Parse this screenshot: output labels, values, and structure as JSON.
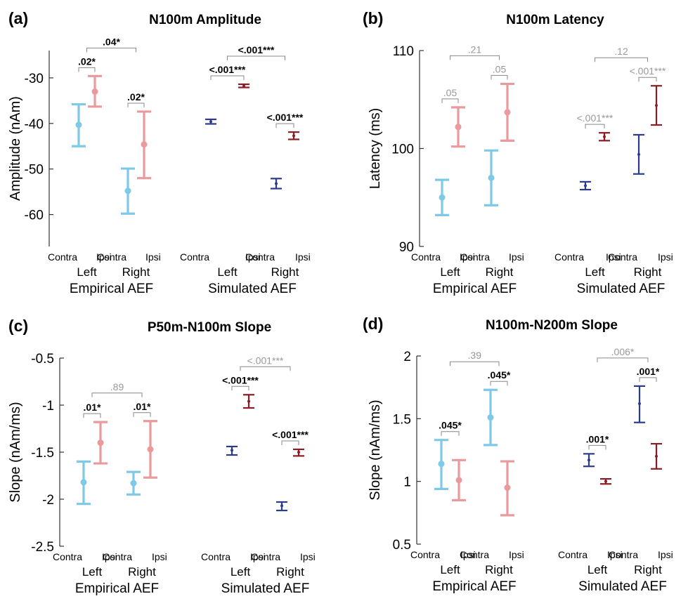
{
  "colors": {
    "empirical_contra": "#7ec8e8",
    "empirical_ipsi": "#ea9a9d",
    "simulated_contra": "#2c3a8c",
    "simulated_ipsi": "#8c1c24",
    "sig_bold": "#000000",
    "sig_gray": "#999999",
    "axis": "#333333"
  },
  "labels": {
    "contra": "Contra",
    "ipsi": "Ipsi",
    "left": "Left",
    "right": "Right",
    "empirical": "Empirical AEF",
    "simulated": "Simulated AEF"
  },
  "chart_data": [
    {
      "type": "errorbar",
      "panel": "(a)",
      "title": "N100m Amplitude",
      "ylabel": "Amplitude (nAm)",
      "ylim": [
        -67,
        -24
      ],
      "yticks": [
        -60,
        -50,
        -40,
        -30
      ],
      "tick_labels": [
        "-60",
        "-50",
        "-40",
        "-30"
      ],
      "series": [
        {
          "group": "Empirical AEF",
          "side": "Left",
          "cond": "Contra",
          "mean": -40.3,
          "low": -45,
          "high": -35.8
        },
        {
          "group": "Empirical AEF",
          "side": "Left",
          "cond": "Ipsi",
          "mean": -33,
          "low": -36.3,
          "high": -29.6
        },
        {
          "group": "Empirical AEF",
          "side": "Right",
          "cond": "Contra",
          "mean": -54.8,
          "low": -59.8,
          "high": -49.9
        },
        {
          "group": "Empirical AEF",
          "side": "Right",
          "cond": "Ipsi",
          "mean": -44.6,
          "low": -52,
          "high": -37.4
        },
        {
          "group": "Simulated AEF",
          "side": "Left",
          "cond": "Contra",
          "mean": -39.6,
          "low": -40.1,
          "high": -39.1
        },
        {
          "group": "Simulated AEF",
          "side": "Left",
          "cond": "Ipsi",
          "mean": -31.8,
          "low": -32.1,
          "high": -31.4
        },
        {
          "group": "Simulated AEF",
          "side": "Right",
          "cond": "Contra",
          "mean": -53.2,
          "low": -54.3,
          "high": -52.1
        },
        {
          "group": "Simulated AEF",
          "side": "Right",
          "cond": "Ipsi",
          "mean": -42.7,
          "low": -43.5,
          "high": -41.9
        }
      ],
      "significance": [
        {
          "pair": "empirical-left",
          "text": ".02*",
          "bold": true
        },
        {
          "pair": "empirical-right",
          "text": ".02*",
          "bold": true
        },
        {
          "pair": "empirical-lr",
          "text": ".04*",
          "bold": true
        },
        {
          "pair": "simulated-left",
          "text": "<.001***",
          "bold": true
        },
        {
          "pair": "simulated-right",
          "text": "<.001***",
          "bold": true
        },
        {
          "pair": "simulated-lr",
          "text": "<.001***",
          "bold": true
        }
      ]
    },
    {
      "type": "errorbar",
      "panel": "(b)",
      "title": "N100m Latency",
      "ylabel": "Latency (ms)",
      "ylim": [
        90,
        110
      ],
      "yticks": [
        90,
        100,
        110
      ],
      "tick_labels": [
        "90",
        "100",
        "110"
      ],
      "series": [
        {
          "group": "Empirical AEF",
          "side": "Left",
          "cond": "Contra",
          "mean": 95,
          "low": 93.2,
          "high": 96.8
        },
        {
          "group": "Empirical AEF",
          "side": "Left",
          "cond": "Ipsi",
          "mean": 102.2,
          "low": 100.2,
          "high": 104.2
        },
        {
          "group": "Empirical AEF",
          "side": "Right",
          "cond": "Contra",
          "mean": 97,
          "low": 94.2,
          "high": 99.8
        },
        {
          "group": "Empirical AEF",
          "side": "Right",
          "cond": "Ipsi",
          "mean": 103.7,
          "low": 100.8,
          "high": 106.6
        },
        {
          "group": "Simulated AEF",
          "side": "Left",
          "cond": "Contra",
          "mean": 96.2,
          "low": 95.8,
          "high": 96.6
        },
        {
          "group": "Simulated AEF",
          "side": "Left",
          "cond": "Ipsi",
          "mean": 101.2,
          "low": 100.8,
          "high": 101.6
        },
        {
          "group": "Simulated AEF",
          "side": "Right",
          "cond": "Contra",
          "mean": 99.4,
          "low": 97.4,
          "high": 101.4
        },
        {
          "group": "Simulated AEF",
          "side": "Right",
          "cond": "Ipsi",
          "mean": 104.4,
          "low": 102.4,
          "high": 106.4
        }
      ],
      "significance": [
        {
          "pair": "empirical-left",
          "text": ".05",
          "bold": false
        },
        {
          "pair": "empirical-right",
          "text": ".05",
          "bold": false
        },
        {
          "pair": "empirical-lr",
          "text": ".21",
          "bold": false
        },
        {
          "pair": "simulated-left",
          "text": "<.001***",
          "bold": false
        },
        {
          "pair": "simulated-right",
          "text": "<.001***",
          "bold": false
        },
        {
          "pair": "simulated-lr",
          "text": ".12",
          "bold": false
        }
      ]
    },
    {
      "type": "errorbar",
      "panel": "(c)",
      "title": "P50m-N100m Slope",
      "ylabel": "Slope (nAm/ms)",
      "ylim": [
        -2.5,
        -0.5
      ],
      "yticks": [
        -2.5,
        -2,
        -1.5,
        -1,
        -0.5
      ],
      "tick_labels": [
        "-2.5",
        "-2",
        "-1.5",
        "-1",
        "-0.5"
      ],
      "series": [
        {
          "group": "Empirical AEF",
          "side": "Left",
          "cond": "Contra",
          "mean": -1.82,
          "low": -2.05,
          "high": -1.6
        },
        {
          "group": "Empirical AEF",
          "side": "Left",
          "cond": "Ipsi",
          "mean": -1.4,
          "low": -1.62,
          "high": -1.18
        },
        {
          "group": "Empirical AEF",
          "side": "Right",
          "cond": "Contra",
          "mean": -1.83,
          "low": -1.95,
          "high": -1.71
        },
        {
          "group": "Empirical AEF",
          "side": "Right",
          "cond": "Ipsi",
          "mean": -1.47,
          "low": -1.77,
          "high": -1.17
        },
        {
          "group": "Simulated AEF",
          "side": "Left",
          "cond": "Contra",
          "mean": -1.48,
          "low": -1.53,
          "high": -1.44
        },
        {
          "group": "Simulated AEF",
          "side": "Left",
          "cond": "Ipsi",
          "mean": -0.96,
          "low": -1.03,
          "high": -0.89
        },
        {
          "group": "Simulated AEF",
          "side": "Right",
          "cond": "Contra",
          "mean": -2.07,
          "low": -2.12,
          "high": -2.03
        },
        {
          "group": "Simulated AEF",
          "side": "Right",
          "cond": "Ipsi",
          "mean": -1.5,
          "low": -1.54,
          "high": -1.47
        }
      ],
      "significance": [
        {
          "pair": "empirical-left",
          "text": ".01*",
          "bold": true
        },
        {
          "pair": "empirical-right",
          "text": ".01*",
          "bold": true
        },
        {
          "pair": "empirical-lr",
          "text": ".89",
          "bold": false
        },
        {
          "pair": "simulated-left",
          "text": "<.001***",
          "bold": true
        },
        {
          "pair": "simulated-right",
          "text": "<.001***",
          "bold": true
        },
        {
          "pair": "simulated-lr",
          "text": "<.001***",
          "bold": false
        }
      ]
    },
    {
      "type": "errorbar",
      "panel": "(d)",
      "title": "N100m-N200m Slope",
      "ylabel": "Slope (nAm/ms)",
      "ylim": [
        0.5,
        2
      ],
      "yticks": [
        0.5,
        1,
        1.5,
        2
      ],
      "tick_labels": [
        "0.5",
        "1",
        "1.5",
        "2"
      ],
      "series": [
        {
          "group": "Empirical AEF",
          "side": "Left",
          "cond": "Contra",
          "mean": 1.14,
          "low": 0.94,
          "high": 1.33
        },
        {
          "group": "Empirical AEF",
          "side": "Left",
          "cond": "Ipsi",
          "mean": 1.01,
          "low": 0.85,
          "high": 1.17
        },
        {
          "group": "Empirical AEF",
          "side": "Right",
          "cond": "Contra",
          "mean": 1.51,
          "low": 1.29,
          "high": 1.73
        },
        {
          "group": "Empirical AEF",
          "side": "Right",
          "cond": "Ipsi",
          "mean": 0.95,
          "low": 0.73,
          "high": 1.16
        },
        {
          "group": "Simulated AEF",
          "side": "Left",
          "cond": "Contra",
          "mean": 1.17,
          "low": 1.12,
          "high": 1.22
        },
        {
          "group": "Simulated AEF",
          "side": "Left",
          "cond": "Ipsi",
          "mean": 1,
          "low": 0.98,
          "high": 1.02
        },
        {
          "group": "Simulated AEF",
          "side": "Right",
          "cond": "Contra",
          "mean": 1.62,
          "low": 1.47,
          "high": 1.76
        },
        {
          "group": "Simulated AEF",
          "side": "Right",
          "cond": "Ipsi",
          "mean": 1.2,
          "low": 1.1,
          "high": 1.3
        }
      ],
      "significance": [
        {
          "pair": "empirical-left",
          "text": ".045*",
          "bold": true
        },
        {
          "pair": "empirical-right",
          "text": ".045*",
          "bold": true
        },
        {
          "pair": "empirical-lr",
          "text": ".39",
          "bold": false
        },
        {
          "pair": "simulated-left",
          "text": ".001*",
          "bold": true
        },
        {
          "pair": "simulated-right",
          "text": ".001*",
          "bold": true
        },
        {
          "pair": "simulated-lr",
          "text": ".006*",
          "bold": false
        }
      ]
    }
  ]
}
